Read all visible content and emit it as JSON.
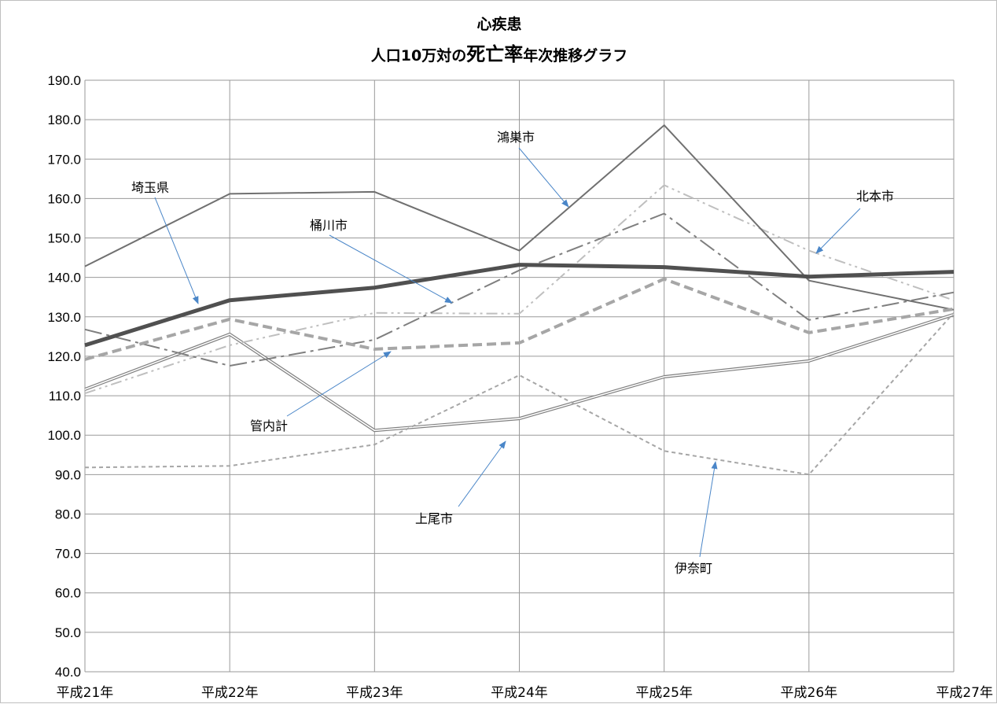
{
  "chart_data": {
    "type": "line",
    "title_line1": "心疾患",
    "title_line2_prefix": "人口10万対の",
    "title_line2_emph": "死亡率",
    "title_line2_suffix": "年次推移グラフ",
    "xlabel": "",
    "ylabel": "",
    "categories": [
      "平成21年",
      "平成22年",
      "平成23年",
      "平成24年",
      "平成25年",
      "平成26年",
      "平成27年"
    ],
    "ylim": [
      40,
      190
    ],
    "ytick_step": 10,
    "yticks": [
      "40.0",
      "50.0",
      "60.0",
      "70.0",
      "80.0",
      "90.0",
      "100.0",
      "110.0",
      "120.0",
      "130.0",
      "140.0",
      "150.0",
      "160.0",
      "170.0",
      "180.0",
      "190.0"
    ],
    "grid": true,
    "series": [
      {
        "name": "鴻巣市",
        "values": [
          142.8,
          161.2,
          161.7,
          146.8,
          178.6,
          139.2,
          131.8
        ],
        "color": "#707070",
        "style": "solid"
      },
      {
        "name": "埼玉県",
        "values": [
          122.8,
          134.2,
          137.4,
          143.2,
          142.6,
          140.2,
          141.4
        ],
        "color": "#505050",
        "style": "thick"
      },
      {
        "name": "桶川市",
        "values": [
          126.8,
          117.6,
          124.2,
          141.8,
          156.2,
          129.2,
          136.2
        ],
        "color": "#7f7f7f",
        "style": "dashdot"
      },
      {
        "name": "北本市",
        "values": [
          110.6,
          122.8,
          131.0,
          130.8,
          163.4,
          146.8,
          134.2
        ],
        "color": "#bfbfbf",
        "style": "dashdotdot"
      },
      {
        "name": "管内計",
        "values": [
          119.2,
          129.4,
          121.8,
          123.4,
          139.6,
          126.0,
          132.0
        ],
        "color": "#a6a6a6",
        "style": "thickdash"
      },
      {
        "name": "上尾市",
        "values": [
          111.6,
          125.6,
          101.2,
          104.2,
          114.8,
          118.8,
          130.6
        ],
        "color": "#808080",
        "style": "double"
      },
      {
        "name": "伊奈町",
        "values": [
          91.8,
          92.2,
          97.6,
          115.2,
          96.0,
          90.0,
          131.0
        ],
        "color": "#a6a6a6",
        "style": "dotted"
      }
    ],
    "annotations": [
      {
        "text": "鴻巣市",
        "series": "鴻巣市"
      },
      {
        "text": "埼玉県",
        "series": "埼玉県"
      },
      {
        "text": "桶川市",
        "series": "桶川市"
      },
      {
        "text": "北本市",
        "series": "北本市"
      },
      {
        "text": "管内計",
        "series": "管内計"
      },
      {
        "text": "上尾市",
        "series": "上尾市"
      },
      {
        "text": "伊奈町",
        "series": "伊奈町"
      }
    ],
    "colors": {
      "arrow": "#4a86c8",
      "grid": "#9a9a9a"
    }
  }
}
